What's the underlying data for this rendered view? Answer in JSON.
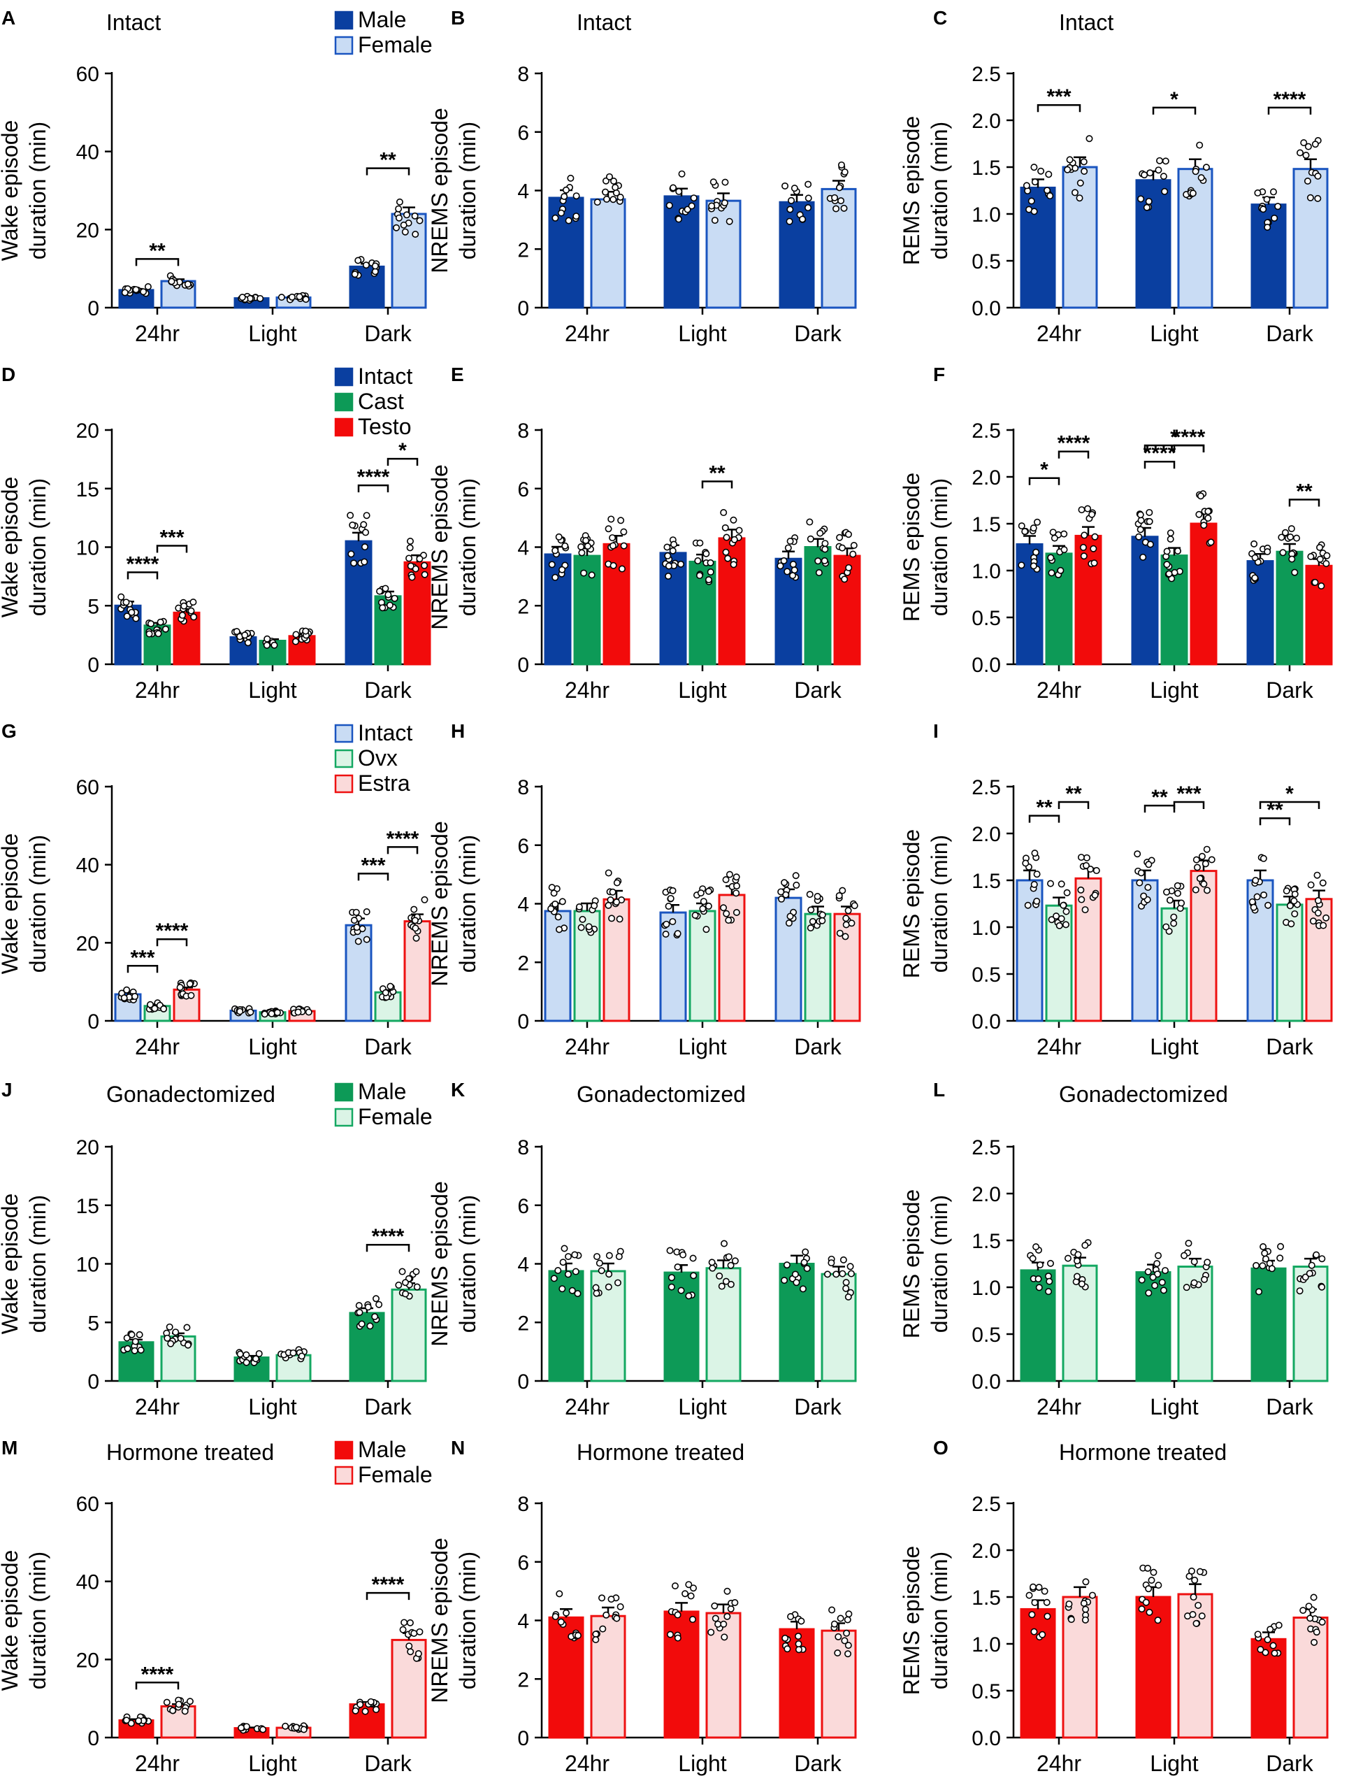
{
  "figure": {
    "tick_categories": [
      "24hr",
      "Light",
      "Dark"
    ],
    "colors": {
      "blue": "#0a3fa0",
      "blue_light": "#c9dcf4",
      "blue_edge": "#1a55c0",
      "green": "#0d9a57",
      "green_light": "#dbf4e6",
      "green_edge": "#14a862",
      "red": "#f20b0b",
      "red_light": "#fadada",
      "red_edge": "#ee1111"
    }
  },
  "chart_data": [
    {
      "panel": "A",
      "type": "bar",
      "title": "Intact",
      "ylabel_line1": "Wake episode",
      "ylabel_line2": "duration   (min)",
      "ylim": [
        0,
        60
      ],
      "yticks": [
        "0",
        "20",
        "40",
        "60"
      ],
      "categories": [
        "24hr",
        "Light",
        "Dark"
      ],
      "legend": [
        "Male",
        "Female"
      ],
      "series": [
        {
          "name": "Male",
          "style": "blue",
          "values": [
            4.5,
            2.4,
            10.5
          ]
        },
        {
          "name": "Female",
          "style": "blue_light",
          "values": [
            6.8,
            2.6,
            24
          ]
        }
      ],
      "sig": [
        {
          "cat": 0,
          "a": 0,
          "b": 1,
          "label": "**"
        },
        {
          "cat": 2,
          "a": 0,
          "b": 1,
          "label": "**"
        }
      ]
    },
    {
      "panel": "B",
      "type": "bar",
      "title": "Intact",
      "ylabel_line1": "NREMS episode",
      "ylabel_line2": "duration   (min)",
      "ylim": [
        0,
        8
      ],
      "yticks": [
        "0",
        "2",
        "4",
        "6",
        "8"
      ],
      "categories": [
        "24hr",
        "Light",
        "Dark"
      ],
      "series": [
        {
          "name": "Male",
          "style": "blue",
          "values": [
            3.75,
            3.8,
            3.6
          ]
        },
        {
          "name": "Female",
          "style": "blue_light",
          "values": [
            3.7,
            3.65,
            4.05
          ]
        }
      ],
      "sig": []
    },
    {
      "panel": "C",
      "type": "bar",
      "title": "Intact",
      "ylabel_line1": "REMS episode",
      "ylabel_line2": "duration   (min)",
      "ylim": [
        0,
        2.5
      ],
      "yticks": [
        "0.0",
        "0.5",
        "1.0",
        "1.5",
        "2.0",
        "2.5"
      ],
      "categories": [
        "24hr",
        "Light",
        "Dark"
      ],
      "series": [
        {
          "name": "Male",
          "style": "blue",
          "values": [
            1.28,
            1.36,
            1.1
          ]
        },
        {
          "name": "Female",
          "style": "blue_light",
          "values": [
            1.5,
            1.48,
            1.48
          ]
        }
      ],
      "sig": [
        {
          "cat": 0,
          "a": 0,
          "b": 1,
          "label": "***"
        },
        {
          "cat": 1,
          "a": 0,
          "b": 1,
          "label": "*"
        },
        {
          "cat": 2,
          "a": 0,
          "b": 1,
          "label": "****"
        }
      ]
    },
    {
      "panel": "D",
      "type": "bar",
      "title": "",
      "ylabel_line1": "Wake episode",
      "ylabel_line2": "duration   (min)",
      "ylim": [
        0,
        20
      ],
      "yticks": [
        "0",
        "5",
        "10",
        "15",
        "20"
      ],
      "categories": [
        "24hr",
        "Light",
        "Dark"
      ],
      "legend": [
        "Intact",
        "Cast",
        "Testo"
      ],
      "series": [
        {
          "name": "Intact",
          "style": "blue",
          "values": [
            5,
            2.3,
            10.5
          ]
        },
        {
          "name": "Cast",
          "style": "green",
          "values": [
            3.3,
            2,
            5.8
          ]
        },
        {
          "name": "Testo",
          "style": "red",
          "values": [
            4.4,
            2.4,
            8.7
          ]
        }
      ],
      "sig": [
        {
          "cat": 0,
          "a": 0,
          "b": 1,
          "label": "****"
        },
        {
          "cat": 0,
          "a": 1,
          "b": 2,
          "label": "***"
        },
        {
          "cat": 2,
          "a": 0,
          "b": 1,
          "label": "****"
        },
        {
          "cat": 2,
          "a": 1,
          "b": 2,
          "label": "*"
        }
      ]
    },
    {
      "panel": "E",
      "type": "bar",
      "title": "",
      "ylabel_line1": "NREMS episode",
      "ylabel_line2": "duration   (min)",
      "ylim": [
        0,
        8
      ],
      "yticks": [
        "0",
        "2",
        "4",
        "6",
        "8"
      ],
      "categories": [
        "24hr",
        "Light",
        "Dark"
      ],
      "series": [
        {
          "name": "Intact",
          "style": "blue",
          "values": [
            3.75,
            3.8,
            3.6
          ]
        },
        {
          "name": "Cast",
          "style": "green",
          "values": [
            3.7,
            3.5,
            4
          ]
        },
        {
          "name": "Testo",
          "style": "red",
          "values": [
            4.1,
            4.3,
            3.7
          ]
        }
      ],
      "sig": [
        {
          "cat": 1,
          "a": 1,
          "b": 2,
          "label": "**"
        }
      ]
    },
    {
      "panel": "F",
      "type": "bar",
      "title": "",
      "ylabel_line1": "REMS episode",
      "ylabel_line2": "duration   (min)",
      "ylim": [
        0,
        2.5
      ],
      "yticks": [
        "0.0",
        "0.5",
        "1.0",
        "1.5",
        "2.0",
        "2.5"
      ],
      "categories": [
        "24hr",
        "Light",
        "Dark"
      ],
      "series": [
        {
          "name": "Intact",
          "style": "blue",
          "values": [
            1.28,
            1.36,
            1.1
          ]
        },
        {
          "name": "Cast",
          "style": "green",
          "values": [
            1.18,
            1.16,
            1.2
          ]
        },
        {
          "name": "Testo",
          "style": "red",
          "values": [
            1.37,
            1.5,
            1.05
          ]
        }
      ],
      "sig": [
        {
          "cat": 0,
          "a": 0,
          "b": 1,
          "label": "*"
        },
        {
          "cat": 0,
          "a": 1,
          "b": 2,
          "label": "****"
        },
        {
          "cat": 1,
          "a": 0,
          "b": 1,
          "label": "****"
        },
        {
          "cat": 1,
          "a": 1,
          "b": 2,
          "label": "****"
        },
        {
          "cat": 1,
          "a": 0,
          "b": 2,
          "label": "*"
        },
        {
          "cat": 2,
          "a": 1,
          "b": 2,
          "label": "**"
        }
      ]
    },
    {
      "panel": "G",
      "type": "bar",
      "title": "",
      "ylabel_line1": "Wake episode",
      "ylabel_line2": "duration   (min)",
      "ylim": [
        0,
        60
      ],
      "yticks": [
        "0",
        "20",
        "40",
        "60"
      ],
      "categories": [
        "24hr",
        "Light",
        "Dark"
      ],
      "legend": [
        "Intact",
        "Ovx",
        "Estra"
      ],
      "series": [
        {
          "name": "Intact",
          "style": "blue_light",
          "values": [
            6.8,
            2.6,
            24.5
          ]
        },
        {
          "name": "Ovx",
          "style": "green_light",
          "values": [
            3.8,
            2.2,
            7.3
          ]
        },
        {
          "name": "Estra",
          "style": "red_light",
          "values": [
            8,
            2.5,
            25.5
          ]
        }
      ],
      "sig": [
        {
          "cat": 0,
          "a": 0,
          "b": 1,
          "label": "***"
        },
        {
          "cat": 0,
          "a": 1,
          "b": 2,
          "label": "****"
        },
        {
          "cat": 2,
          "a": 0,
          "b": 1,
          "label": "***"
        },
        {
          "cat": 2,
          "a": 1,
          "b": 2,
          "label": "****"
        }
      ]
    },
    {
      "panel": "H",
      "type": "bar",
      "title": "",
      "ylabel_line1": "NREMS episode",
      "ylabel_line2": "duration   (min)",
      "ylim": [
        0,
        8
      ],
      "yticks": [
        "0",
        "2",
        "4",
        "6",
        "8"
      ],
      "categories": [
        "24hr",
        "Light",
        "Dark"
      ],
      "series": [
        {
          "name": "Intact",
          "style": "blue_light",
          "values": [
            3.75,
            3.7,
            4.2
          ]
        },
        {
          "name": "Ovx",
          "style": "green_light",
          "values": [
            3.75,
            3.75,
            3.65
          ]
        },
        {
          "name": "Estra",
          "style": "red_light",
          "values": [
            4.15,
            4.3,
            3.65
          ]
        }
      ],
      "sig": []
    },
    {
      "panel": "I",
      "type": "bar",
      "title": "",
      "ylabel_line1": "REMS episode",
      "ylabel_line2": "duration   (min)",
      "ylim": [
        0,
        2.5
      ],
      "yticks": [
        "0.0",
        "0.5",
        "1.0",
        "1.5",
        "2.0",
        "2.5"
      ],
      "categories": [
        "24hr",
        "Light",
        "Dark"
      ],
      "series": [
        {
          "name": "Intact",
          "style": "blue_light",
          "values": [
            1.5,
            1.5,
            1.5
          ]
        },
        {
          "name": "Ovx",
          "style": "green_light",
          "values": [
            1.23,
            1.2,
            1.24
          ]
        },
        {
          "name": "Estra",
          "style": "red_light",
          "values": [
            1.52,
            1.6,
            1.3
          ]
        }
      ],
      "sig": [
        {
          "cat": 0,
          "a": 0,
          "b": 1,
          "label": "**"
        },
        {
          "cat": 0,
          "a": 1,
          "b": 2,
          "label": "**"
        },
        {
          "cat": 1,
          "a": 0,
          "b": 1,
          "label": "**"
        },
        {
          "cat": 1,
          "a": 1,
          "b": 2,
          "label": "***"
        },
        {
          "cat": 2,
          "a": 0,
          "b": 1,
          "label": "**"
        },
        {
          "cat": 2,
          "a": 0,
          "b": 2,
          "label": "*"
        }
      ]
    },
    {
      "panel": "J",
      "type": "bar",
      "title": "Gonadectomized",
      "ylabel_line1": "Wake episode",
      "ylabel_line2": "duration   (min)",
      "ylim": [
        0,
        20
      ],
      "yticks": [
        "0",
        "5",
        "10",
        "15",
        "20"
      ],
      "categories": [
        "24hr",
        "Light",
        "Dark"
      ],
      "legend": [
        "Male",
        "Female"
      ],
      "series": [
        {
          "name": "Male",
          "style": "green",
          "values": [
            3.3,
            2,
            5.8
          ]
        },
        {
          "name": "Female",
          "style": "green_light",
          "values": [
            3.8,
            2.2,
            7.8
          ]
        }
      ],
      "sig": [
        {
          "cat": 2,
          "a": 0,
          "b": 1,
          "label": "****"
        }
      ]
    },
    {
      "panel": "K",
      "type": "bar",
      "title": "Gonadectomized",
      "ylabel_line1": "NREMS episode",
      "ylabel_line2": "duration   (min)",
      "ylim": [
        0,
        8
      ],
      "yticks": [
        "0",
        "2",
        "4",
        "6",
        "8"
      ],
      "categories": [
        "24hr",
        "Light",
        "Dark"
      ],
      "series": [
        {
          "name": "Male",
          "style": "green",
          "values": [
            3.75,
            3.7,
            4
          ]
        },
        {
          "name": "Female",
          "style": "green_light",
          "values": [
            3.75,
            3.85,
            3.65
          ]
        }
      ],
      "sig": []
    },
    {
      "panel": "L",
      "type": "bar",
      "title": "Gonadectomized",
      "ylabel_line1": "REMS episode",
      "ylabel_line2": "duration   (min)",
      "ylim": [
        0,
        2.5
      ],
      "yticks": [
        "0.0",
        "0.5",
        "1.0",
        "1.5",
        "2.0",
        "2.5"
      ],
      "categories": [
        "24hr",
        "Light",
        "Dark"
      ],
      "series": [
        {
          "name": "Male",
          "style": "green",
          "values": [
            1.18,
            1.16,
            1.2
          ]
        },
        {
          "name": "Female",
          "style": "green_light",
          "values": [
            1.23,
            1.22,
            1.22
          ]
        }
      ],
      "sig": []
    },
    {
      "panel": "M",
      "type": "bar",
      "title": "Hormone treated",
      "ylabel_line1": "Wake episode",
      "ylabel_line2": "duration   (min)",
      "ylim": [
        0,
        60
      ],
      "yticks": [
        "0",
        "20",
        "40",
        "60"
      ],
      "categories": [
        "24hr",
        "Light",
        "Dark"
      ],
      "legend": [
        "Male",
        "Female"
      ],
      "series": [
        {
          "name": "Male",
          "style": "red",
          "values": [
            4.4,
            2.4,
            8.5
          ]
        },
        {
          "name": "Female",
          "style": "red_light",
          "values": [
            8,
            2.5,
            25
          ]
        }
      ],
      "sig": [
        {
          "cat": 0,
          "a": 0,
          "b": 1,
          "label": "****"
        },
        {
          "cat": 2,
          "a": 0,
          "b": 1,
          "label": "****"
        }
      ]
    },
    {
      "panel": "N",
      "type": "bar",
      "title": "Hormone treated",
      "ylabel_line1": "NREMS episode",
      "ylabel_line2": "duration   (min)",
      "ylim": [
        0,
        8
      ],
      "yticks": [
        "0",
        "2",
        "4",
        "6",
        "8"
      ],
      "categories": [
        "24hr",
        "Light",
        "Dark"
      ],
      "series": [
        {
          "name": "Male",
          "style": "red",
          "values": [
            4.1,
            4.3,
            3.7
          ]
        },
        {
          "name": "Female",
          "style": "red_light",
          "values": [
            4.15,
            4.25,
            3.65
          ]
        }
      ],
      "sig": []
    },
    {
      "panel": "O",
      "type": "bar",
      "title": "Hormone treated",
      "ylabel_line1": "REMS episode",
      "ylabel_line2": "duration   (min)",
      "ylim": [
        0,
        2.5
      ],
      "yticks": [
        "0.0",
        "0.5",
        "1.0",
        "1.5",
        "2.0",
        "2.5"
      ],
      "categories": [
        "24hr",
        "Light",
        "Dark"
      ],
      "series": [
        {
          "name": "Male",
          "style": "red",
          "values": [
            1.37,
            1.5,
            1.05
          ]
        },
        {
          "name": "Female",
          "style": "red_light",
          "values": [
            1.5,
            1.53,
            1.28
          ]
        }
      ],
      "sig": []
    }
  ]
}
